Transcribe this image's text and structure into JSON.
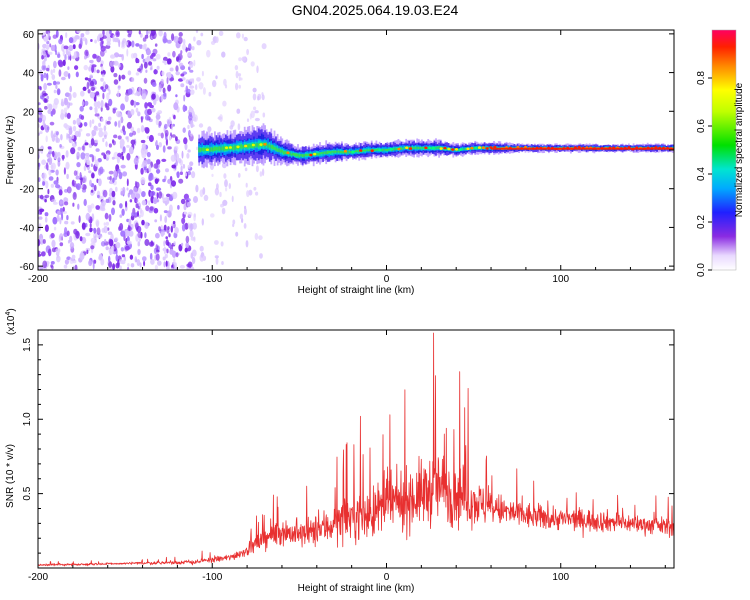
{
  "title": "GN04.2025.064.19.03.E24",
  "chart_data": [
    {
      "type": "heatmap",
      "xlabel": "Height of straight line (km)",
      "ylabel": "Frequency (Hz)",
      "xlim": [
        -200,
        165
      ],
      "ylim": [
        -62,
        62
      ],
      "xticks": [
        -200,
        -100,
        0,
        100
      ],
      "yticks": [
        -60,
        -40,
        -20,
        0,
        20,
        40,
        60
      ],
      "colorbar": {
        "label": "Normalized spectral amplitude",
        "range": [
          0,
          1
        ],
        "ticks": [
          "0.0",
          "0.2",
          "0.4",
          "0.6",
          "0.8"
        ]
      },
      "ridge": {
        "x": [
          -108,
          -90,
          -70,
          -60,
          -50,
          -40,
          -30,
          -20,
          -10,
          0,
          10,
          20,
          30,
          40,
          50,
          60,
          80,
          100,
          120,
          140,
          160
        ],
        "freq": [
          0,
          1,
          3,
          -1,
          -3,
          -2,
          -1,
          -1,
          0,
          0,
          1,
          1,
          1,
          0,
          1,
          1,
          1,
          1,
          1,
          1,
          1
        ],
        "halfwidth": [
          8,
          8,
          9,
          6,
          5,
          5,
          5,
          4,
          4,
          4,
          4,
          4,
          4,
          3,
          3,
          3,
          2,
          2,
          2,
          2,
          2
        ]
      },
      "noise_region": [
        -200,
        -80
      ]
    },
    {
      "type": "line",
      "xlabel": "Height of straight line (km)",
      "ylabel": "SNR (10 * v/v)",
      "y_multiplier": "(x10",
      "y_multiplier_exp": "4",
      "xlim": [
        -200,
        165
      ],
      "ylim": [
        0,
        1.6
      ],
      "xticks": [
        -200,
        -100,
        0,
        100
      ],
      "yticks": [
        "0.5",
        "1.0",
        "1.5"
      ],
      "color": "#e83030",
      "envelope": {
        "x": [
          -200,
          -150,
          -110,
          -90,
          -80,
          -70,
          -60,
          -50,
          -40,
          -30,
          -20,
          -10,
          0,
          10,
          20,
          30,
          40,
          50,
          60,
          80,
          100,
          120,
          140,
          160,
          165
        ],
        "mean": [
          0.02,
          0.03,
          0.04,
          0.07,
          0.12,
          0.2,
          0.25,
          0.22,
          0.25,
          0.3,
          0.35,
          0.35,
          0.42,
          0.45,
          0.5,
          0.55,
          0.5,
          0.45,
          0.4,
          0.35,
          0.33,
          0.32,
          0.3,
          0.28,
          0.28
        ],
        "spread": [
          0.01,
          0.01,
          0.02,
          0.03,
          0.05,
          0.1,
          0.12,
          0.12,
          0.14,
          0.18,
          0.2,
          0.22,
          0.25,
          0.27,
          0.3,
          0.32,
          0.3,
          0.22,
          0.15,
          0.12,
          0.1,
          0.1,
          0.08,
          0.08,
          0.08
        ]
      },
      "peaks": [
        {
          "x": 27,
          "y": 1.58
        },
        {
          "x": 42,
          "y": 1.32
        },
        {
          "x": -15,
          "y": 1.02
        },
        {
          "x": 2,
          "y": 1.03
        }
      ]
    }
  ]
}
